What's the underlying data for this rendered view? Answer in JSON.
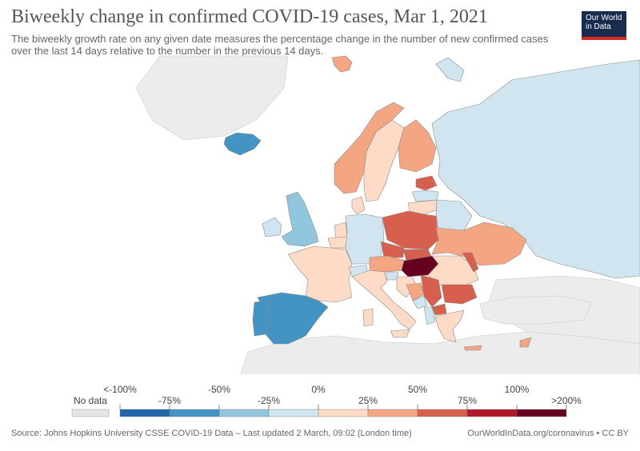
{
  "title": "Biweekly change in confirmed COVID-19 cases, Mar 1, 2021",
  "subtitle": "The biweekly growth rate on any given date measures the percentage change in the number of new confirmed cases over the last 14 days relative to the number in the previous 14 days.",
  "logo": {
    "line1": "Our World",
    "line2": "in Data"
  },
  "legend": {
    "no_data_label": "No data",
    "thresholds": [
      "<-100%",
      "-75%",
      "-50%",
      "-25%",
      "0%",
      "25%",
      "50%",
      "75%",
      "100%",
      ">200%"
    ],
    "colors": [
      "#2166ac",
      "#4393c3",
      "#92c5de",
      "#d1e5f0",
      "#fddbc7",
      "#f4a582",
      "#d6604d",
      "#b2182b",
      "#67001f"
    ],
    "no_data_color": "#e5e5e5"
  },
  "colors": {
    "no_data": "#ececec",
    "sea": "#ffffff",
    "border": "#cccccc"
  },
  "map_regions": [
    {
      "name": "Iceland",
      "fill": "#4393c3"
    },
    {
      "name": "Ireland",
      "fill": "#d1e5f0"
    },
    {
      "name": "United Kingdom",
      "fill": "#92c5de"
    },
    {
      "name": "Norway",
      "fill": "#f4a582"
    },
    {
      "name": "Sweden",
      "fill": "#fddbc7"
    },
    {
      "name": "Finland",
      "fill": "#f4a582"
    },
    {
      "name": "Russia",
      "fill": "#d1e5f0"
    },
    {
      "name": "Estonia",
      "fill": "#d6604d"
    },
    {
      "name": "Latvia",
      "fill": "#d1e5f0"
    },
    {
      "name": "Lithuania",
      "fill": "#fddbc7"
    },
    {
      "name": "Belarus",
      "fill": "#d1e5f0"
    },
    {
      "name": "Denmark",
      "fill": "#fddbc7"
    },
    {
      "name": "Netherlands",
      "fill": "#fddbc7"
    },
    {
      "name": "Belgium",
      "fill": "#fddbc7"
    },
    {
      "name": "Germany",
      "fill": "#d1e5f0"
    },
    {
      "name": "Poland",
      "fill": "#d6604d"
    },
    {
      "name": "Czechia",
      "fill": "#d6604d"
    },
    {
      "name": "Slovakia",
      "fill": "#d6604d"
    },
    {
      "name": "Ukraine",
      "fill": "#f4a582"
    },
    {
      "name": "France",
      "fill": "#fddbc7"
    },
    {
      "name": "Switzerland",
      "fill": "#d1e5f0"
    },
    {
      "name": "Austria",
      "fill": "#f4a582"
    },
    {
      "name": "Hungary",
      "fill": "#67001f"
    },
    {
      "name": "Moldova",
      "fill": "#d6604d"
    },
    {
      "name": "Romania",
      "fill": "#fddbc7"
    },
    {
      "name": "Slovenia",
      "fill": "#d1e5f0"
    },
    {
      "name": "Croatia",
      "fill": "#fddbc7"
    },
    {
      "name": "Bosnia and Herzegovina",
      "fill": "#f4a582"
    },
    {
      "name": "Serbia",
      "fill": "#d6604d"
    },
    {
      "name": "Montenegro",
      "fill": "#d1e5f0"
    },
    {
      "name": "Albania",
      "fill": "#d1e5f0"
    },
    {
      "name": "North Macedonia",
      "fill": "#d6604d"
    },
    {
      "name": "Bulgaria",
      "fill": "#d6604d"
    },
    {
      "name": "Greece",
      "fill": "#fddbc7"
    },
    {
      "name": "Italy",
      "fill": "#fddbc7"
    },
    {
      "name": "Spain",
      "fill": "#4393c3"
    },
    {
      "name": "Portugal",
      "fill": "#4393c3"
    },
    {
      "name": "Sardinia",
      "fill": "#fddbc7"
    },
    {
      "name": "Sicily",
      "fill": "#fddbc7"
    },
    {
      "name": "Cyprus",
      "fill": "#f4a582"
    },
    {
      "name": "Svalbard",
      "fill": "#f4a582"
    }
  ],
  "footer": {
    "source": "Source: Johns Hopkins University CSSE COVID-19 Data – Last updated 2 March, 09:02 (London time)",
    "url": "OurWorldInData.org/coronavirus • CC BY"
  }
}
